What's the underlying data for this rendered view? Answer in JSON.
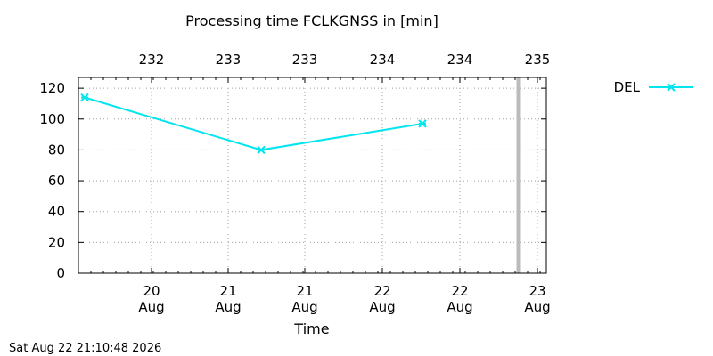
{
  "chart_data": {
    "type": "line",
    "title": "Processing time FCLKGNSS in [min]",
    "xlabel": "Time",
    "ylabel": "",
    "ylim": [
      0,
      127
    ],
    "y_ticks": [
      0,
      20,
      40,
      60,
      80,
      100,
      120
    ],
    "grid": true,
    "legend_position": "top-right, outside plot",
    "x_bottom_ticks": [
      {
        "line1": "20",
        "line2": "Aug"
      },
      {
        "line1": "21",
        "line2": "Aug"
      },
      {
        "line1": "21",
        "line2": "Aug"
      },
      {
        "line1": "22",
        "line2": "Aug"
      },
      {
        "line1": "22",
        "line2": "Aug"
      },
      {
        "line1": "23",
        "line2": "Aug"
      }
    ],
    "x_top_ticks": [
      "232",
      "233",
      "233",
      "234",
      "234",
      "235"
    ],
    "series": [
      {
        "name": "DEL",
        "color": "#00e5ee",
        "marker": "x-cross",
        "points": [
          {
            "x": "19 Aug ~03:00",
            "y": 114
          },
          {
            "x": "21 Aug ~10:00",
            "y": 80
          },
          {
            "x": "22 Aug ~12:00",
            "y": 97
          }
        ]
      }
    ],
    "now_marker": {
      "x": "22 Aug 21:10",
      "color": "#bbbbbb"
    }
  },
  "timestamp": "Sat Aug 22 21:10:48 2026"
}
